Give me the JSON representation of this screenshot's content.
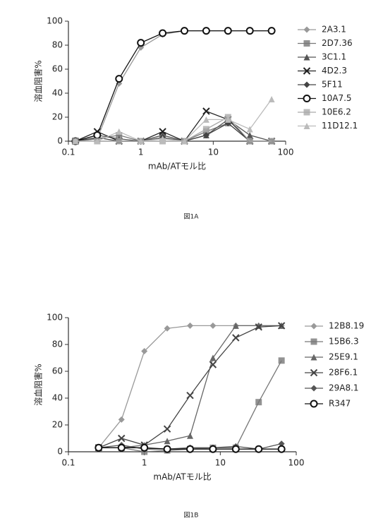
{
  "chart_data": [
    {
      "type": "line",
      "caption": "図1A",
      "xlabel": "mAb/ATモル比",
      "ylabel": "溶血阻害%",
      "xscale": "log",
      "xlim": [
        0.1,
        100
      ],
      "xticks": [
        0.1,
        1,
        10,
        100
      ],
      "ylim": [
        0,
        100
      ],
      "yticks": [
        0,
        20,
        40,
        60,
        80,
        100
      ],
      "x": [
        0.125,
        0.25,
        0.5,
        1,
        2,
        4,
        8,
        16,
        32,
        64
      ],
      "series": [
        {
          "name": "2A3.1",
          "color": "#999",
          "marker": "diamond",
          "values": [
            0,
            2,
            48,
            78,
            89,
            92,
            92,
            92,
            92,
            92
          ]
        },
        {
          "name": "2D7.36",
          "color": "#777",
          "marker": "square",
          "values": [
            0,
            2,
            5,
            0,
            5,
            0,
            8,
            15,
            0,
            0
          ]
        },
        {
          "name": "3C1.1",
          "color": "#555",
          "marker": "triangle",
          "values": [
            0,
            5,
            2,
            0,
            5,
            0,
            5,
            18,
            5,
            0
          ]
        },
        {
          "name": "4D2.3",
          "color": "#222",
          "marker": "x",
          "values": [
            0,
            8,
            0,
            0,
            8,
            0,
            25,
            18,
            0,
            0
          ]
        },
        {
          "name": "5F11",
          "color": "#444",
          "marker": "diamond",
          "values": [
            0,
            3,
            0,
            0,
            3,
            0,
            5,
            15,
            0,
            0
          ]
        },
        {
          "name": "10A7.5",
          "color": "#111",
          "marker": "circle",
          "values": [
            0,
            5,
            52,
            82,
            90,
            92,
            92,
            92,
            92,
            92
          ]
        },
        {
          "name": "10E6.2",
          "color": "#aaa",
          "marker": "square",
          "values": [
            0,
            0,
            0,
            0,
            0,
            0,
            10,
            20,
            0,
            0
          ]
        },
        {
          "name": "11D12.1",
          "color": "#bbb",
          "marker": "triangle",
          "values": [
            0,
            0,
            8,
            0,
            2,
            0,
            18,
            18,
            10,
            35
          ]
        }
      ]
    },
    {
      "type": "line",
      "caption": "図1B",
      "xlabel": "mAb/ATモル比",
      "ylabel": "溶血阻害%",
      "xscale": "log",
      "xlim": [
        0.1,
        100
      ],
      "xticks": [
        0.1,
        1,
        10,
        100
      ],
      "ylim": [
        0,
        100
      ],
      "yticks": [
        0,
        20,
        40,
        60,
        80,
        100
      ],
      "x": [
        0.25,
        0.5,
        1,
        2,
        4,
        8,
        16,
        32,
        64
      ],
      "series": [
        {
          "name": "12B8.19",
          "color": "#999",
          "marker": "diamond",
          "values": [
            3,
            24,
            75,
            92,
            94,
            94,
            94,
            94,
            94
          ]
        },
        {
          "name": "15B6.3",
          "color": "#777",
          "marker": "square",
          "values": [
            3,
            3,
            0,
            1,
            2,
            3,
            3,
            37,
            68
          ]
        },
        {
          "name": "25E9.1",
          "color": "#666",
          "marker": "triangle",
          "values": [
            3,
            3,
            5,
            8,
            12,
            70,
            94,
            94,
            94
          ]
        },
        {
          "name": "28F6.1",
          "color": "#444",
          "marker": "x",
          "values": [
            3,
            10,
            5,
            17,
            42,
            65,
            85,
            93,
            94
          ]
        },
        {
          "name": "29A8.1",
          "color": "#555",
          "marker": "diamond",
          "values": [
            3,
            5,
            2,
            2,
            3,
            3,
            4,
            2,
            6
          ]
        },
        {
          "name": "R347",
          "color": "#111",
          "marker": "circle",
          "values": [
            3,
            3,
            3,
            2,
            2,
            2,
            2,
            2,
            2
          ]
        }
      ]
    }
  ]
}
